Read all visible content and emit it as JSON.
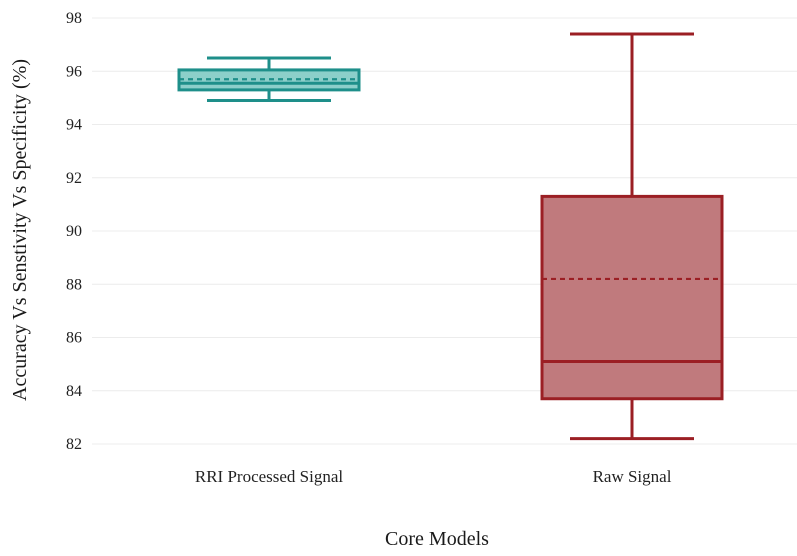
{
  "chart_data": {
    "type": "box",
    "title": "",
    "xlabel": "Core Models",
    "ylabel": "Accuracy Vs Senstivity Vs Specificity (%)",
    "ylim": [
      82,
      98
    ],
    "yticks": [
      "82",
      "84",
      "86",
      "88",
      "90",
      "92",
      "94",
      "96",
      "98"
    ],
    "grid": true,
    "categories": [
      "RRI Processed Signal",
      "Raw Signal"
    ],
    "boxes": [
      {
        "category": "RRI Processed Signal",
        "min": 94.9,
        "q1": 95.3,
        "median": 95.55,
        "mean": 95.7,
        "q3": 96.05,
        "max": 96.5,
        "stroke": "#1e8f8a",
        "fill": "#8ccfca"
      },
      {
        "category": "Raw Signal",
        "min": 82.2,
        "q1": 83.7,
        "median": 85.1,
        "mean": 88.2,
        "q3": 91.3,
        "max": 97.4,
        "stroke": "#9b1f24",
        "fill": "#c07a7d"
      }
    ]
  }
}
